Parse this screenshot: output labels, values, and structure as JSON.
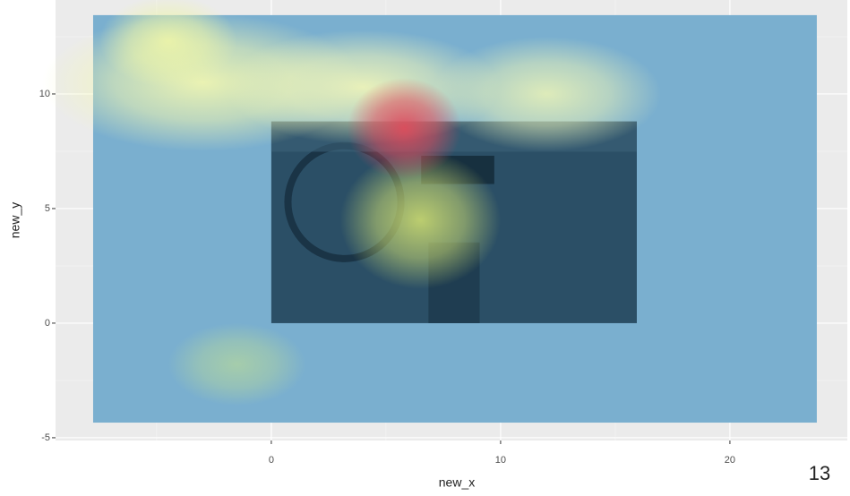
{
  "chart_data": {
    "type": "heatmap",
    "x_label": "new_x",
    "y_label": "new_y",
    "xlim": [
      -9.41,
      25.12
    ],
    "ylim": [
      -5.12,
      14.1
    ],
    "xticks": [
      0,
      10,
      20
    ],
    "yticks": [
      -5,
      0,
      5,
      10
    ],
    "minor_xticks": [
      -5,
      5,
      15
    ],
    "minor_yticks": [
      -2.5,
      2.5,
      7.5,
      12.5
    ],
    "grid": true,
    "tile_xlim": [
      -7.77,
      23.79
    ],
    "tile_ylim": [
      -4.34,
      13.44
    ],
    "tile_color": "#7aafcf",
    "image_xlim": [
      0,
      15.94
    ],
    "image_ylim": [
      0,
      8.8
    ],
    "image_color": "#2b4f66",
    "hotspots": [
      {
        "x": -3,
        "y": 10.5,
        "rx": 7,
        "ry": 3,
        "color": "#f4f8b0"
      },
      {
        "x": 4,
        "y": 10.3,
        "rx": 6,
        "ry": 2.5,
        "color": "#f2f6b8"
      },
      {
        "x": 12,
        "y": 10,
        "rx": 5,
        "ry": 2.5,
        "color": "#e6f0b8"
      },
      {
        "x": -4.5,
        "y": 12.3,
        "rx": 3,
        "ry": 2,
        "color": "#eef5a8"
      },
      {
        "x": 6.5,
        "y": 4.5,
        "rx": 3.5,
        "ry": 3,
        "color": "#c8d870"
      },
      {
        "x": 5.8,
        "y": 8.5,
        "rx": 2.5,
        "ry": 2.2,
        "color": "#e24a5a"
      },
      {
        "x": -1.5,
        "y": -1.8,
        "rx": 3,
        "ry": 1.8,
        "color": "#a9cfa8"
      }
    ]
  },
  "page_number": "13"
}
